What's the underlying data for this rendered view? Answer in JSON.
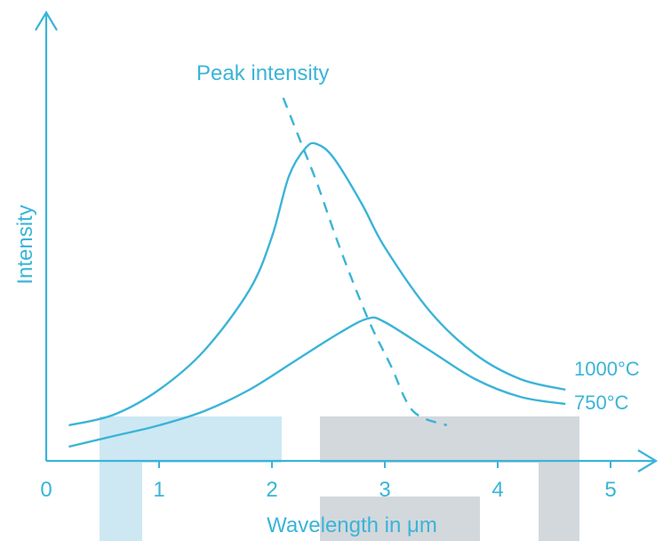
{
  "chart_data": {
    "type": "line",
    "title": "",
    "xlabel": "Wavelength in μm",
    "ylabel": "Intensity",
    "x_ticks": [
      "0",
      "1",
      "2",
      "3",
      "4",
      "5"
    ],
    "xlim": [
      0,
      5.3
    ],
    "ylim": [
      0,
      1
    ],
    "grid": false,
    "series": [
      {
        "name": "1000°C",
        "style": "solid",
        "x": [
          0.2,
          0.6,
          1.0,
          1.4,
          1.8,
          2.0,
          2.15,
          2.3,
          2.4,
          2.55,
          2.8,
          3.0,
          3.4,
          3.8,
          4.2,
          4.6
        ],
        "y": [
          0.1,
          0.13,
          0.2,
          0.31,
          0.48,
          0.63,
          0.8,
          0.88,
          0.89,
          0.85,
          0.72,
          0.6,
          0.42,
          0.3,
          0.23,
          0.2
        ]
      },
      {
        "name": "750°C",
        "style": "solid",
        "x": [
          0.2,
          0.6,
          1.0,
          1.4,
          1.8,
          2.2,
          2.6,
          2.85,
          3.0,
          3.4,
          3.8,
          4.2,
          4.6
        ],
        "y": [
          0.04,
          0.07,
          0.1,
          0.14,
          0.2,
          0.28,
          0.36,
          0.4,
          0.39,
          0.31,
          0.23,
          0.18,
          0.16
        ]
      },
      {
        "name": "Peak intensity",
        "style": "dashed",
        "x": [
          2.1,
          2.25,
          2.4,
          2.6,
          2.85,
          3.05,
          3.25,
          3.55
        ],
        "y": [
          1.02,
          0.9,
          0.78,
          0.6,
          0.4,
          0.27,
          0.14,
          0.1
        ]
      }
    ],
    "annotations": [
      "Peak intensity",
      "1000°C",
      "750°C"
    ],
    "color": "#3ab4d8",
    "watermark_colors": [
      "#cde8f3",
      "#d3d8dc"
    ]
  }
}
